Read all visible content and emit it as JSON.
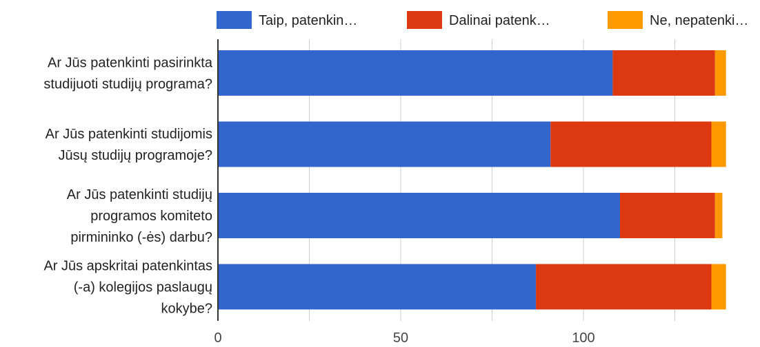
{
  "chart_data": {
    "type": "bar",
    "orientation": "horizontal",
    "stacked": true,
    "categories": [
      [
        "Ar Jūs patenkinti pasirinkta",
        "studijuoti studijų programa?"
      ],
      [
        "Ar Jūs patenkinti studijomis",
        "Jūsų studijų programoje?"
      ],
      [
        "Ar Jūs patenkinti studijų",
        "programos komiteto",
        "pirmininko (-ės) darbu?"
      ],
      [
        "Ar Jūs apskritai patenkintas",
        "(-a) kolegijos paslaugų",
        "kokybe?"
      ]
    ],
    "series": [
      {
        "name": "Taip, patenkin…",
        "color": "#3366cc",
        "values": [
          108,
          91,
          110,
          87
        ]
      },
      {
        "name": "Dalinai patenk…",
        "color": "#dc3912",
        "values": [
          28,
          44,
          26,
          48
        ]
      },
      {
        "name": "Ne, nepatenki…",
        "color": "#ff9900",
        "values": [
          3,
          4,
          2,
          4
        ]
      }
    ],
    "xlim": [
      0,
      139
    ],
    "xticks": [
      "0",
      "50",
      "100"
    ],
    "xtick_values": [
      0,
      50,
      100
    ],
    "gridlines": [
      0,
      25,
      50,
      75,
      100,
      125
    ],
    "grid": true,
    "legend_position": "top"
  }
}
